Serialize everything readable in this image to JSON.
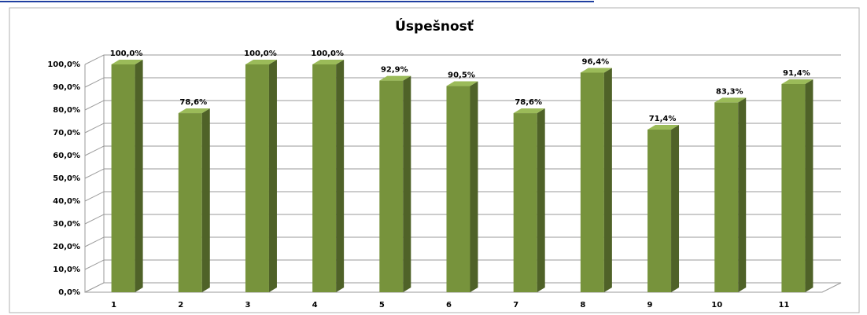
{
  "chart_data": {
    "type": "bar3d",
    "title": "Úspešnosť",
    "categories": [
      "1",
      "2",
      "3",
      "4",
      "5",
      "6",
      "7",
      "8",
      "9",
      "10",
      "11"
    ],
    "values": [
      100,
      78.6,
      100,
      100,
      92.9,
      90.5,
      78.6,
      96.4,
      71.4,
      83.3,
      91.4
    ],
    "value_labels": [
      "100,0%",
      "78,6%",
      "100,0%",
      "100,0%",
      "92,9%",
      "90,5%",
      "78,6%",
      "96,4%",
      "71,4%",
      "83,3%",
      "91,4%"
    ],
    "color": "#77933c",
    "ylim": [
      0,
      100
    ],
    "yticks": [
      {
        "value": 0,
        "label": "0,0%"
      },
      {
        "value": 10,
        "label": "10,0%"
      },
      {
        "value": 20,
        "label": "20,0%"
      },
      {
        "value": 30,
        "label": "30,0%"
      },
      {
        "value": 40,
        "label": "40,0%"
      },
      {
        "value": 50,
        "label": "50,0%"
      },
      {
        "value": 60,
        "label": "60,0%"
      },
      {
        "value": 70,
        "label": "70,0%"
      },
      {
        "value": 80,
        "label": "80,0%"
      },
      {
        "value": 90,
        "label": "90,0%"
      },
      {
        "value": 100,
        "label": "100,0%"
      }
    ],
    "grid": true
  }
}
